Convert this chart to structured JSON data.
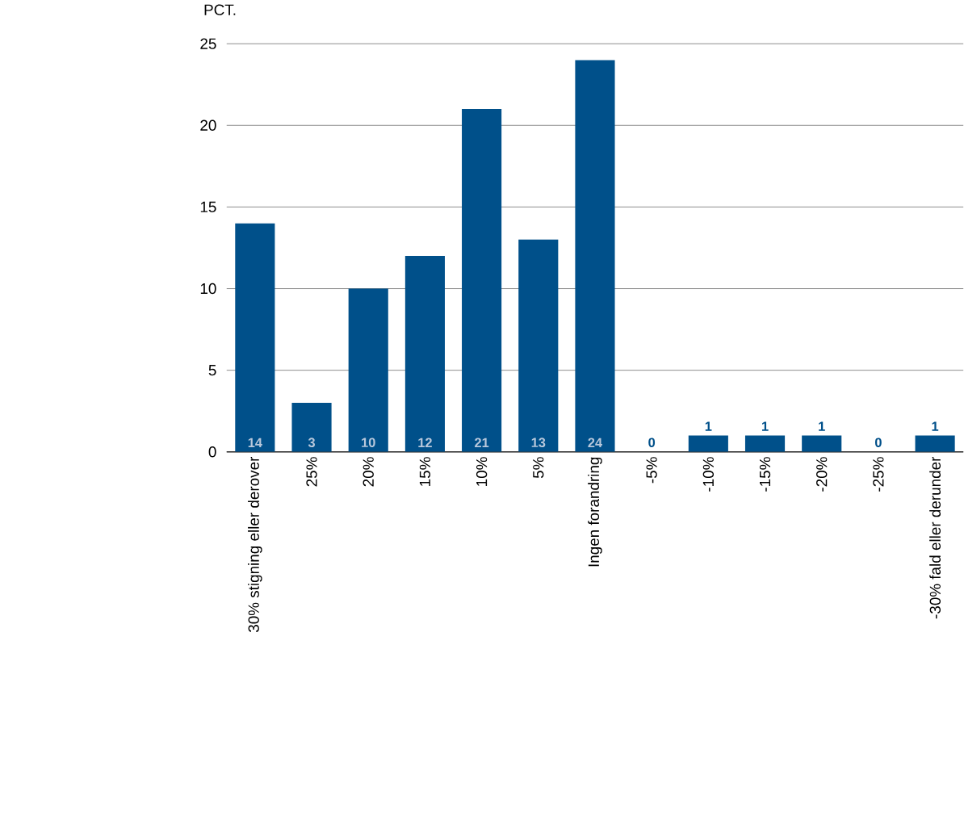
{
  "chart_data": {
    "type": "bar",
    "ylabel": "PCT.",
    "categories": [
      "30% stigning eller derover",
      "25%",
      "20%",
      "15%",
      "10%",
      "5%",
      "Ingen forandring",
      "-5%",
      "-10%",
      "-15%",
      "-20%",
      "-25%",
      "-30% fald eller derunder"
    ],
    "values": [
      14,
      3,
      10,
      12,
      21,
      13,
      24,
      0,
      1,
      1,
      1,
      0,
      1
    ],
    "color": "#00508a",
    "ylim": [
      0,
      25
    ],
    "yticks": [
      0,
      5,
      10,
      15,
      20,
      25
    ],
    "grid": "y",
    "data_labels": true
  }
}
